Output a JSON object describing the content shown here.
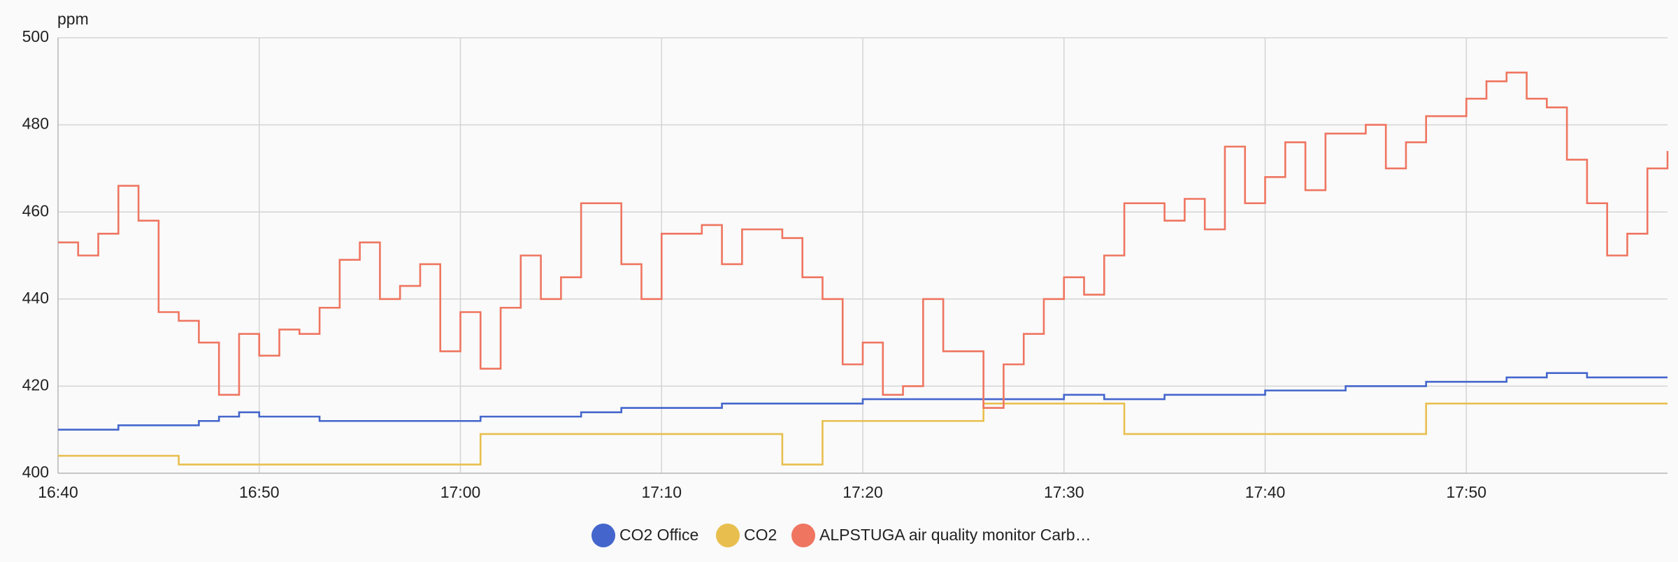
{
  "chart_data": {
    "type": "line",
    "step": true,
    "y_label": "ppm",
    "x": [
      "16:40",
      "16:41",
      "16:42",
      "16:43",
      "16:44",
      "16:45",
      "16:46",
      "16:47",
      "16:48",
      "16:49",
      "16:50",
      "16:51",
      "16:52",
      "16:53",
      "16:54",
      "16:55",
      "16:56",
      "16:57",
      "16:58",
      "16:59",
      "17:00",
      "17:01",
      "17:02",
      "17:03",
      "17:04",
      "17:05",
      "17:06",
      "17:07",
      "17:08",
      "17:09",
      "17:10",
      "17:11",
      "17:12",
      "17:13",
      "17:14",
      "17:15",
      "17:16",
      "17:17",
      "17:18",
      "17:19",
      "17:20",
      "17:21",
      "17:22",
      "17:23",
      "17:24",
      "17:25",
      "17:26",
      "17:27",
      "17:28",
      "17:29",
      "17:30",
      "17:31",
      "17:32",
      "17:33",
      "17:34",
      "17:35",
      "17:36",
      "17:37",
      "17:38",
      "17:39",
      "17:40",
      "17:41",
      "17:42",
      "17:43",
      "17:44",
      "17:45",
      "17:46",
      "17:47",
      "17:48",
      "17:49",
      "17:50",
      "17:51",
      "17:52",
      "17:53",
      "17:54",
      "17:55",
      "17:56",
      "17:57",
      "17:58",
      "17:59",
      "18:00"
    ],
    "series": [
      {
        "name": "CO2 Office",
        "color": "#4466cc",
        "values": [
          410,
          410,
          410,
          411,
          411,
          411,
          411,
          412,
          413,
          414,
          413,
          413,
          413,
          412,
          412,
          412,
          412,
          412,
          412,
          412,
          412,
          413,
          413,
          413,
          413,
          413,
          414,
          414,
          415,
          415,
          415,
          415,
          415,
          416,
          416,
          416,
          416,
          416,
          416,
          416,
          417,
          417,
          417,
          417,
          417,
          417,
          417,
          417,
          417,
          417,
          418,
          418,
          417,
          417,
          417,
          418,
          418,
          418,
          418,
          418,
          419,
          419,
          419,
          419,
          420,
          420,
          420,
          420,
          421,
          421,
          421,
          421,
          422,
          422,
          423,
          423,
          422,
          422,
          422,
          422,
          422
        ]
      },
      {
        "name": "CO2",
        "color": "#e8bf4f",
        "values": [
          404,
          404,
          404,
          404,
          404,
          404,
          402,
          402,
          402,
          402,
          402,
          402,
          402,
          402,
          402,
          402,
          402,
          402,
          402,
          402,
          402,
          409,
          409,
          409,
          409,
          409,
          409,
          409,
          409,
          409,
          409,
          409,
          409,
          409,
          409,
          409,
          402,
          402,
          412,
          412,
          412,
          412,
          412,
          412,
          412,
          412,
          416,
          416,
          416,
          416,
          416,
          416,
          416,
          409,
          409,
          409,
          409,
          409,
          409,
          409,
          409,
          409,
          409,
          409,
          409,
          409,
          409,
          409,
          416,
          416,
          416,
          416,
          416,
          416,
          416,
          416,
          416,
          416,
          416,
          416,
          416
        ]
      },
      {
        "name": "ALPSTUGA air quality monitor Carb…",
        "color": "#ef7560",
        "values": [
          453,
          450,
          455,
          466,
          458,
          437,
          435,
          430,
          418,
          432,
          427,
          433,
          432,
          438,
          449,
          453,
          440,
          443,
          448,
          428,
          437,
          424,
          438,
          450,
          440,
          445,
          462,
          462,
          448,
          440,
          455,
          455,
          457,
          448,
          456,
          456,
          454,
          445,
          440,
          425,
          430,
          418,
          420,
          440,
          428,
          428,
          415,
          425,
          432,
          440,
          445,
          441,
          450,
          462,
          462,
          458,
          463,
          456,
          475,
          462,
          468,
          476,
          465,
          478,
          478,
          480,
          470,
          476,
          482,
          482,
          486,
          490,
          492,
          486,
          484,
          472,
          462,
          450,
          455,
          470,
          474
        ]
      }
    ],
    "xlim": [
      "16:40",
      "18:00"
    ],
    "xticks": [
      "16:40",
      "16:50",
      "17:00",
      "17:10",
      "17:20",
      "17:30",
      "17:40",
      "17:50"
    ],
    "ylim": [
      400,
      500
    ],
    "yticks": [
      400,
      420,
      440,
      460,
      480,
      500
    ],
    "grid": true
  }
}
